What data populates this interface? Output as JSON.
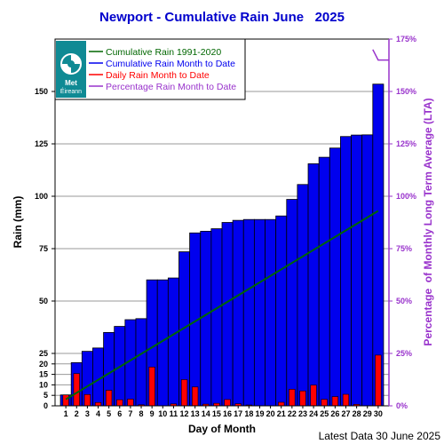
{
  "chart_data": {
    "type": "bar",
    "title": "Newport - Cumulative Rain June   2025",
    "xlabel": "Day of Month",
    "ylabel": "Rain (mm)",
    "y2label": "Percentage  of Monthly Long Term Average (LTA)",
    "footer": "Latest Data 30 June 2025",
    "x": [
      1,
      2,
      3,
      4,
      5,
      6,
      7,
      8,
      9,
      10,
      11,
      12,
      13,
      14,
      15,
      16,
      17,
      18,
      19,
      20,
      21,
      22,
      23,
      24,
      25,
      26,
      27,
      28,
      29,
      30
    ],
    "x_tick_labels": [
      "1",
      "2",
      "3",
      "4",
      "5",
      "6",
      "7",
      "8",
      "9",
      "10",
      "11",
      "12",
      "13",
      "14",
      "15",
      "16",
      "17",
      "18",
      "19",
      "20",
      "21",
      "22",
      "23",
      "24",
      "25",
      "26",
      "27",
      "28",
      "29",
      "30"
    ],
    "y_ticks": [
      0,
      5,
      10,
      15,
      20,
      25,
      50,
      75,
      100,
      125,
      150
    ],
    "y_tick_labels": [
      "0",
      "5",
      "10",
      "15",
      "20",
      "25",
      "50",
      "75",
      "100",
      "125",
      "150"
    ],
    "y2_ticks": [
      0,
      25,
      50,
      75,
      100,
      125,
      150,
      175
    ],
    "y2_tick_labels": [
      "0%",
      "25%",
      "50%",
      "75%",
      "100%",
      "125%",
      "150%",
      "175%"
    ],
    "ylim": [
      0,
      175
    ],
    "y2lim": [
      0,
      175
    ],
    "grid": true,
    "legend_position": "top-left",
    "logo_text": [
      "Met",
      "Éireann"
    ],
    "series": [
      {
        "name": "Cumulative Rain 1991-2020",
        "kind": "line",
        "color": "#006600",
        "x": [
          1,
          30
        ],
        "values": [
          3.1,
          93.0
        ]
      },
      {
        "name": "Cumulative Rain Month to Date",
        "kind": "bar",
        "color": "#0000ee",
        "values": [
          5.2,
          20.6,
          26.0,
          27.6,
          35.0,
          37.9,
          41.1,
          41.6,
          60.1,
          60.1,
          61.0,
          73.5,
          82.5,
          83.3,
          84.5,
          87.5,
          88.5,
          88.9,
          88.9,
          88.9,
          90.6,
          98.5,
          105.6,
          115.5,
          118.6,
          123.0,
          128.5,
          129.2,
          129.3,
          153.5
        ]
      },
      {
        "name": "Daily Rain Month to Date",
        "kind": "bar",
        "color": "#ff0000",
        "values": [
          5.2,
          15.4,
          5.4,
          1.6,
          7.4,
          2.9,
          3.2,
          0.5,
          18.5,
          0.0,
          0.9,
          12.5,
          9.0,
          0.8,
          1.2,
          3.0,
          1.0,
          0.4,
          0.0,
          0.0,
          1.7,
          7.9,
          7.1,
          9.9,
          3.1,
          4.4,
          5.5,
          0.7,
          0.1,
          24.2
        ]
      },
      {
        "name": "Percentage Rain Month to Date",
        "kind": "line",
        "color": "#9933cc",
        "x": [
          29.5,
          30
        ],
        "values": [
          170,
          165
        ]
      }
    ]
  }
}
